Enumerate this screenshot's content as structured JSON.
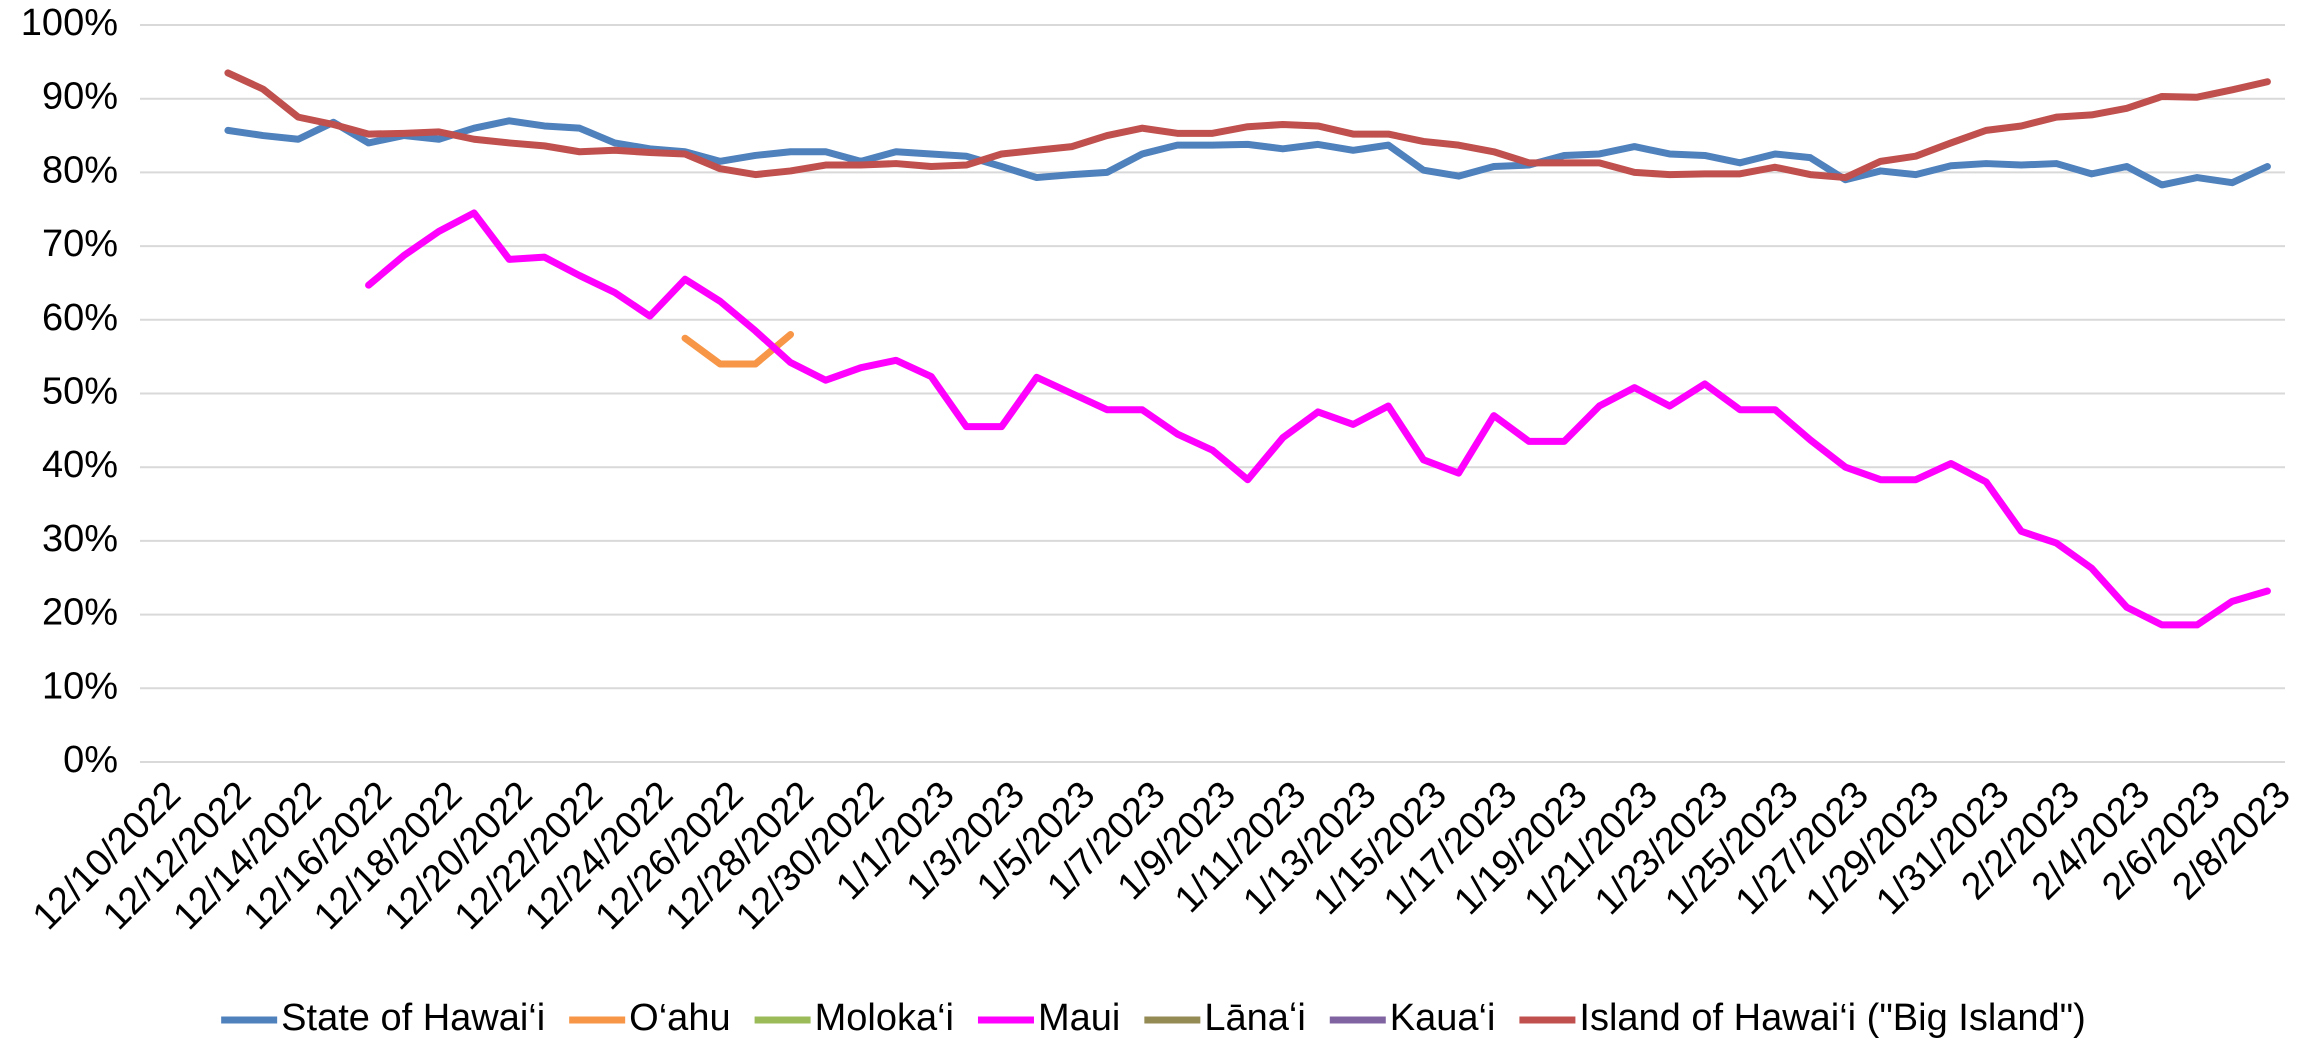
{
  "chart_data": {
    "type": "line",
    "categories": [
      "12/10/2022",
      null,
      "12/12/2022",
      null,
      "12/14/2022",
      null,
      "12/16/2022",
      null,
      "12/18/2022",
      null,
      "12/20/2022",
      null,
      "12/22/2022",
      null,
      "12/24/2022",
      null,
      "12/26/2022",
      null,
      "12/28/2022",
      null,
      "12/30/2022",
      null,
      "1/1/2023",
      null,
      "1/3/2023",
      null,
      "1/5/2023",
      null,
      "1/7/2023",
      null,
      "1/9/2023",
      null,
      "1/11/2023",
      null,
      "1/13/2023",
      null,
      "1/15/2023",
      null,
      "1/17/2023",
      null,
      "1/19/2023",
      null,
      "1/21/2023",
      null,
      "1/23/2023",
      null,
      "1/25/2023",
      null,
      "1/27/2023",
      null,
      "1/29/2023",
      null,
      "1/31/2023",
      null,
      "2/2/2023",
      null,
      "2/4/2023",
      null,
      "2/6/2023",
      null,
      "2/8/2023"
    ],
    "series": [
      {
        "name": "State of Hawai‘i",
        "color": "#4f81bd",
        "values": [
          null,
          null,
          85.7,
          85,
          84.5,
          86.8,
          84,
          85,
          84.5,
          86,
          87,
          86.3,
          86,
          84,
          83.2,
          82.8,
          81.5,
          82.3,
          82.8,
          82.8,
          81.5,
          82.8,
          82.5,
          82.2,
          80.8,
          79.3,
          79.7,
          80,
          82.5,
          83.7,
          83.7,
          83.8,
          83.2,
          83.8,
          83,
          83.7,
          80.3,
          79.5,
          80.8,
          81,
          82.3,
          82.5,
          83.5,
          82.5,
          82.3,
          81.3,
          82.5,
          82,
          79,
          80.2,
          79.7,
          80.9,
          81.2,
          81,
          81.2,
          79.8,
          80.8,
          78.3,
          79.3,
          78.6,
          80.8
        ]
      },
      {
        "name": "O‘ahu",
        "color": "#f79646",
        "values": [
          null,
          null,
          null,
          null,
          null,
          null,
          null,
          null,
          null,
          null,
          null,
          null,
          null,
          null,
          null,
          57.5,
          54,
          54,
          58,
          null,
          null,
          null,
          null,
          null,
          null,
          null,
          null,
          null,
          null,
          null,
          null,
          null,
          null,
          null,
          null,
          null,
          null,
          null,
          null,
          null,
          null,
          null,
          null,
          null,
          null,
          null,
          null,
          null,
          null,
          null,
          null,
          null,
          null,
          null,
          null,
          null,
          null,
          null,
          null,
          null,
          null
        ]
      },
      {
        "name": "Moloka‘i",
        "color": "#9bbb59",
        "values": [
          null,
          null,
          null,
          null,
          null,
          null,
          null,
          null,
          null,
          null,
          null,
          null,
          null,
          null,
          null,
          null,
          null,
          null,
          null,
          null,
          null,
          null,
          null,
          null,
          null,
          null,
          null,
          null,
          null,
          null,
          null,
          null,
          null,
          null,
          null,
          null,
          null,
          null,
          null,
          null,
          null,
          null,
          null,
          null,
          null,
          null,
          null,
          null,
          null,
          null,
          null,
          null,
          null,
          null,
          null,
          null,
          null,
          null,
          null,
          null,
          null
        ]
      },
      {
        "name": "Maui",
        "color": "#ff00ff",
        "values": [
          null,
          null,
          null,
          null,
          null,
          null,
          64.7,
          68.7,
          72,
          74.5,
          68.2,
          68.5,
          66,
          63.7,
          60.5,
          65.5,
          62.5,
          58.5,
          54.2,
          51.8,
          53.5,
          54.5,
          52.3,
          45.5,
          45.5,
          52.2,
          50,
          47.8,
          47.8,
          44.5,
          42.3,
          38.3,
          44,
          47.5,
          45.8,
          48.3,
          41,
          39.2,
          47,
          43.5,
          43.5,
          48.3,
          50.8,
          48.3,
          51.3,
          47.8,
          47.8,
          43.7,
          40,
          38.3,
          38.3,
          40.5,
          38,
          31.3,
          29.7,
          26.3,
          21,
          18.6,
          18.6,
          21.8,
          23.2
        ]
      },
      {
        "name": "Lānaʻi",
        "color": "#948a54",
        "values": [
          null,
          null,
          null,
          null,
          null,
          null,
          null,
          null,
          null,
          null,
          null,
          null,
          null,
          null,
          null,
          null,
          null,
          null,
          null,
          null,
          null,
          null,
          null,
          null,
          null,
          null,
          null,
          null,
          null,
          null,
          null,
          null,
          null,
          null,
          null,
          null,
          null,
          null,
          null,
          null,
          null,
          null,
          null,
          null,
          null,
          null,
          null,
          null,
          null,
          null,
          null,
          null,
          null,
          null,
          null,
          null,
          null,
          null,
          null,
          null,
          null
        ]
      },
      {
        "name": "Kaua‘i",
        "color": "#8064a2",
        "values": [
          null,
          null,
          null,
          null,
          null,
          null,
          null,
          null,
          null,
          null,
          null,
          null,
          null,
          null,
          null,
          null,
          null,
          null,
          null,
          null,
          null,
          null,
          null,
          null,
          null,
          null,
          null,
          null,
          null,
          null,
          null,
          null,
          null,
          null,
          null,
          null,
          null,
          null,
          null,
          null,
          null,
          null,
          null,
          null,
          null,
          null,
          null,
          null,
          null,
          null,
          null,
          null,
          null,
          null,
          null,
          null,
          null,
          null,
          null,
          null,
          null
        ]
      },
      {
        "name": "Island of Hawai‘i (\"Big Island\")",
        "color": "#c0504d",
        "values": [
          null,
          null,
          93.5,
          91.3,
          87.5,
          86.5,
          85.2,
          85.3,
          85.5,
          84.5,
          84,
          83.6,
          82.8,
          83,
          82.7,
          82.5,
          80.5,
          79.7,
          80.2,
          81,
          81,
          81.2,
          80.8,
          81,
          82.5,
          83,
          83.5,
          85,
          86,
          85.3,
          85.3,
          86.2,
          86.5,
          86.3,
          85.2,
          85.2,
          84.2,
          83.7,
          82.8,
          81.3,
          81.3,
          81.3,
          80,
          79.7,
          79.8,
          79.8,
          80.7,
          79.7,
          79.3,
          81.5,
          82.2,
          84,
          85.7,
          86.3,
          87.5,
          87.8,
          88.7,
          90.3,
          90.2,
          91.2,
          92.3
        ]
      }
    ],
    "ylim": [
      0,
      100
    ],
    "yticks": [
      {
        "value": 0,
        "label": "0%"
      },
      {
        "value": 10,
        "label": "10%"
      },
      {
        "value": 20,
        "label": "20%"
      },
      {
        "value": 30,
        "label": "30%"
      },
      {
        "value": 40,
        "label": "40%"
      },
      {
        "value": 50,
        "label": "50%"
      },
      {
        "value": 60,
        "label": "60%"
      },
      {
        "value": 70,
        "label": "70%"
      },
      {
        "value": 80,
        "label": "80%"
      },
      {
        "value": 90,
        "label": "90%"
      },
      {
        "value": 100,
        "label": "100%"
      }
    ],
    "grid": true,
    "legend": "bottom"
  }
}
